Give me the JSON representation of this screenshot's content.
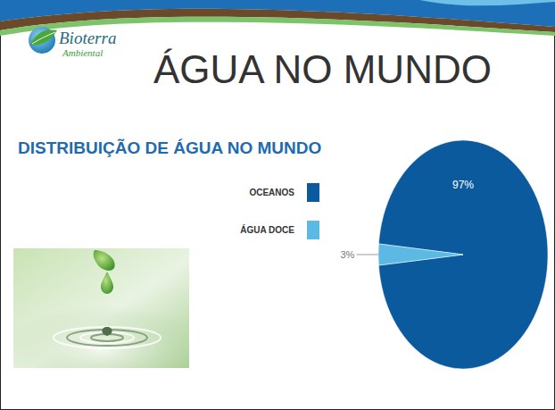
{
  "slide": {
    "logo": "Bioterra",
    "logo_subtitle": "Ambiental",
    "title": "ÁGUA NO MUNDO"
  },
  "chart_data": {
    "type": "pie",
    "title": "DISTRIBUIÇÃO DE ÁGUA NO MUNDO",
    "categories": [
      "OCEANOS",
      "ÁGUA DOCE"
    ],
    "values": [
      97,
      3
    ],
    "value_labels": [
      "97%",
      "3%"
    ],
    "colors": [
      "#0b5a9e",
      "#5cb9e3"
    ],
    "legend": "left",
    "data_labels": true
  }
}
